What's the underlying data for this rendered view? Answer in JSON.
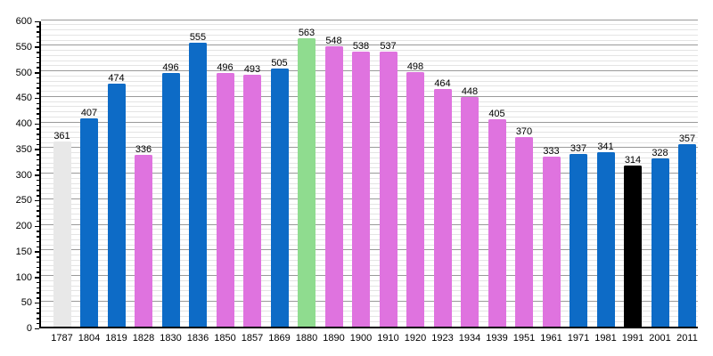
{
  "chart_data": {
    "type": "bar",
    "title": "",
    "xlabel": "",
    "ylabel": "",
    "ylim": [
      0,
      600
    ],
    "ytick_step": 50,
    "minor_grid_step": 10,
    "grid": "on",
    "legend": "none",
    "y_tick_labels": [
      "0",
      "50",
      "100",
      "150",
      "200",
      "250",
      "300",
      "350",
      "400",
      "450",
      "500",
      "550",
      "600"
    ],
    "categories": [
      "1787",
      "1804",
      "1819",
      "1828",
      "1830",
      "1836",
      "1850",
      "1857",
      "1869",
      "1880",
      "1890",
      "1900",
      "1910",
      "1920",
      "1923",
      "1934",
      "1939",
      "1951",
      "1961",
      "1971",
      "1981",
      "1991",
      "2001",
      "2011"
    ],
    "values": [
      361,
      407,
      474,
      336,
      496,
      555,
      496,
      493,
      505,
      563,
      548,
      538,
      537,
      498,
      464,
      448,
      405,
      370,
      333,
      337,
      341,
      314,
      328,
      357
    ],
    "bar_color_keys": [
      "gray",
      "blue",
      "blue",
      "violet",
      "blue",
      "blue",
      "violet",
      "violet",
      "blue",
      "green",
      "violet",
      "violet",
      "violet",
      "violet",
      "violet",
      "violet",
      "violet",
      "violet",
      "violet",
      "blue",
      "blue",
      "black",
      "blue",
      "blue"
    ],
    "colors": {
      "blue": "#0d6bc6",
      "violet": "#df73df",
      "green": "#8fdc8f",
      "gray": "#e8e8e8",
      "black": "#000000",
      "grid_minor": "#e4e4e4",
      "grid_major": "#9a9a9a",
      "axis": "#000000",
      "label_text": "#000000",
      "background": "#ffffff"
    }
  }
}
